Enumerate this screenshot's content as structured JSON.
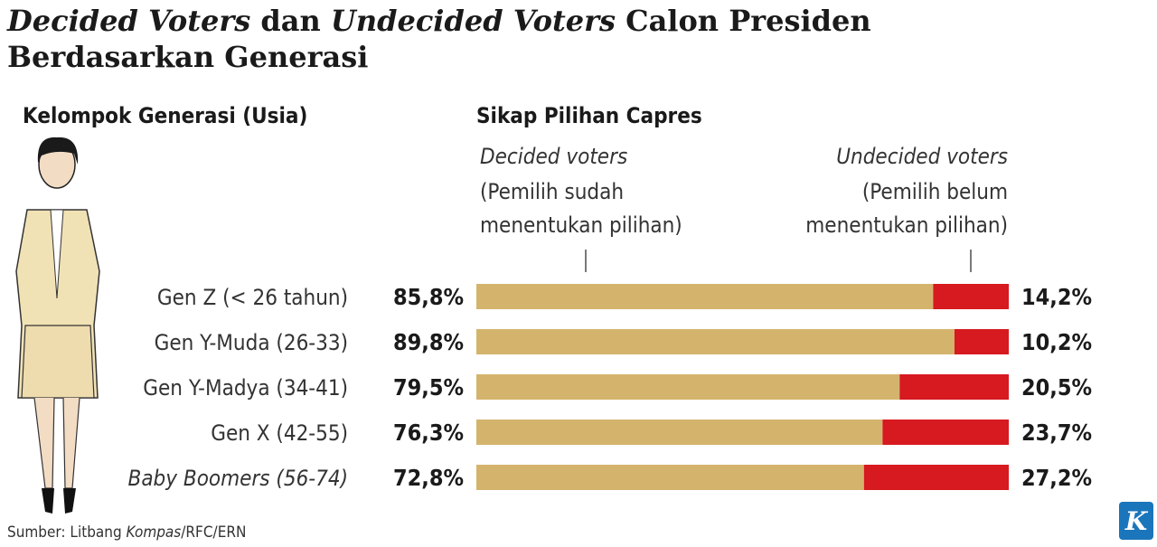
{
  "chart_data": {
    "type": "stacked-bar-horizontal",
    "title_lines": [
      [
        {
          "text": "Decided Voters",
          "italic": true
        },
        {
          "text": " dan ",
          "italic": false
        },
        {
          "text": "Undecided Voters",
          "italic": true
        },
        {
          "text": " Calon Presiden",
          "italic": false
        }
      ],
      [
        {
          "text": "Berdasarkan Generasi",
          "italic": false
        }
      ]
    ],
    "category_header": "Kelompok Generasi (Usia)",
    "value_header": "Sikap Pilihan Capres",
    "categories": [
      "Gen Z (< 26 tahun)",
      "Gen Y-Muda (26-33)",
      "Gen Y-Madya (34-41)",
      "Gen X (42-55)",
      "Baby Boomers (56-74)"
    ],
    "category_italic": [
      false,
      false,
      false,
      false,
      true
    ],
    "xlim": [
      0,
      100
    ],
    "series": [
      {
        "name": "Decided voters",
        "description": [
          "(Pemilih sudah",
          "menentukan pilihan)"
        ],
        "color": "#d4b46c",
        "values": [
          85.8,
          89.8,
          79.5,
          76.3,
          72.8
        ],
        "value_labels": [
          "85,8%",
          "89,8%",
          "79,5%",
          "76,3%",
          "72,8%"
        ]
      },
      {
        "name": "Undecided voters",
        "description": [
          "(Pemilih belum",
          "menentukan pilihan)"
        ],
        "color": "#d71920",
        "values": [
          14.2,
          10.2,
          20.5,
          23.7,
          27.2
        ],
        "value_labels": [
          "14,2%",
          "10,2%",
          "20,5%",
          "23,7%",
          "27,2%"
        ]
      }
    ],
    "source": [
      {
        "text": "Sumber: Litbang ",
        "italic": false
      },
      {
        "text": "Kompas",
        "italic": true
      },
      {
        "text": "/RFC/ERN",
        "italic": false
      }
    ],
    "logo": "K"
  }
}
